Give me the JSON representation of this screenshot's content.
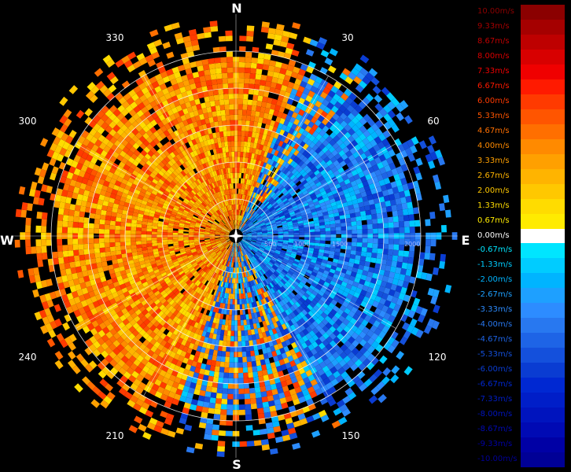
{
  "radar": {
    "compass": {
      "north": "N",
      "east": "E",
      "south": "S",
      "west": "W"
    },
    "azimuth_labels": [
      "30",
      "60",
      "120",
      "150",
      "210",
      "240",
      "300",
      "330"
    ],
    "range_labels": [
      "500",
      "1000",
      "1500",
      "2000"
    ],
    "colors": {
      "background": "#000000",
      "rings": "#ffffff",
      "axes": "#ffffff",
      "range_text": "#9fb6ff"
    }
  },
  "legend": {
    "entries": [
      {
        "label": "10.00m/s",
        "color": "#8b0000"
      },
      {
        "label": "9.33m/s",
        "color": "#a50000"
      },
      {
        "label": "8.67m/s",
        "color": "#be0000"
      },
      {
        "label": "8.00m/s",
        "color": "#d80000"
      },
      {
        "label": "7.33m/s",
        "color": "#f00000"
      },
      {
        "label": "6.67m/s",
        "color": "#ff1a00"
      },
      {
        "label": "6.00m/s",
        "color": "#ff3a00"
      },
      {
        "label": "5.33m/s",
        "color": "#ff5500"
      },
      {
        "label": "4.67m/s",
        "color": "#ff6f00"
      },
      {
        "label": "4.00m/s",
        "color": "#ff8a00"
      },
      {
        "label": "3.33m/s",
        "color": "#ffa000"
      },
      {
        "label": "2.67m/s",
        "color": "#ffb400"
      },
      {
        "label": "2.00m/s",
        "color": "#ffc800"
      },
      {
        "label": "1.33m/s",
        "color": "#ffdc00"
      },
      {
        "label": "0.67m/s",
        "color": "#ffeb00"
      },
      {
        "label": "0.00m/s",
        "color": "#ffffff"
      },
      {
        "label": "-0.67m/s",
        "color": "#00e5ff"
      },
      {
        "label": "-1.33m/s",
        "color": "#00ccff"
      },
      {
        "label": "-2.00m/s",
        "color": "#00b4ff"
      },
      {
        "label": "-2.67m/s",
        "color": "#1ea0ff"
      },
      {
        "label": "-3.33m/s",
        "color": "#2d8cff"
      },
      {
        "label": "-4.00m/s",
        "color": "#2878f0"
      },
      {
        "label": "-4.67m/s",
        "color": "#1e64e6"
      },
      {
        "label": "-5.33m/s",
        "color": "#1450dc"
      },
      {
        "label": "-6.00m/s",
        "color": "#0a3cd2"
      },
      {
        "label": "-6.67m/s",
        "color": "#0028d2"
      },
      {
        "label": "-7.33m/s",
        "color": "#001ec8"
      },
      {
        "label": "-8.00m/s",
        "color": "#0014be"
      },
      {
        "label": "-8.67m/s",
        "color": "#000ab4"
      },
      {
        "label": "-9.33m/s",
        "color": "#0000a5"
      },
      {
        "label": "-10.00m/s",
        "color": "#000096"
      }
    ]
  }
}
